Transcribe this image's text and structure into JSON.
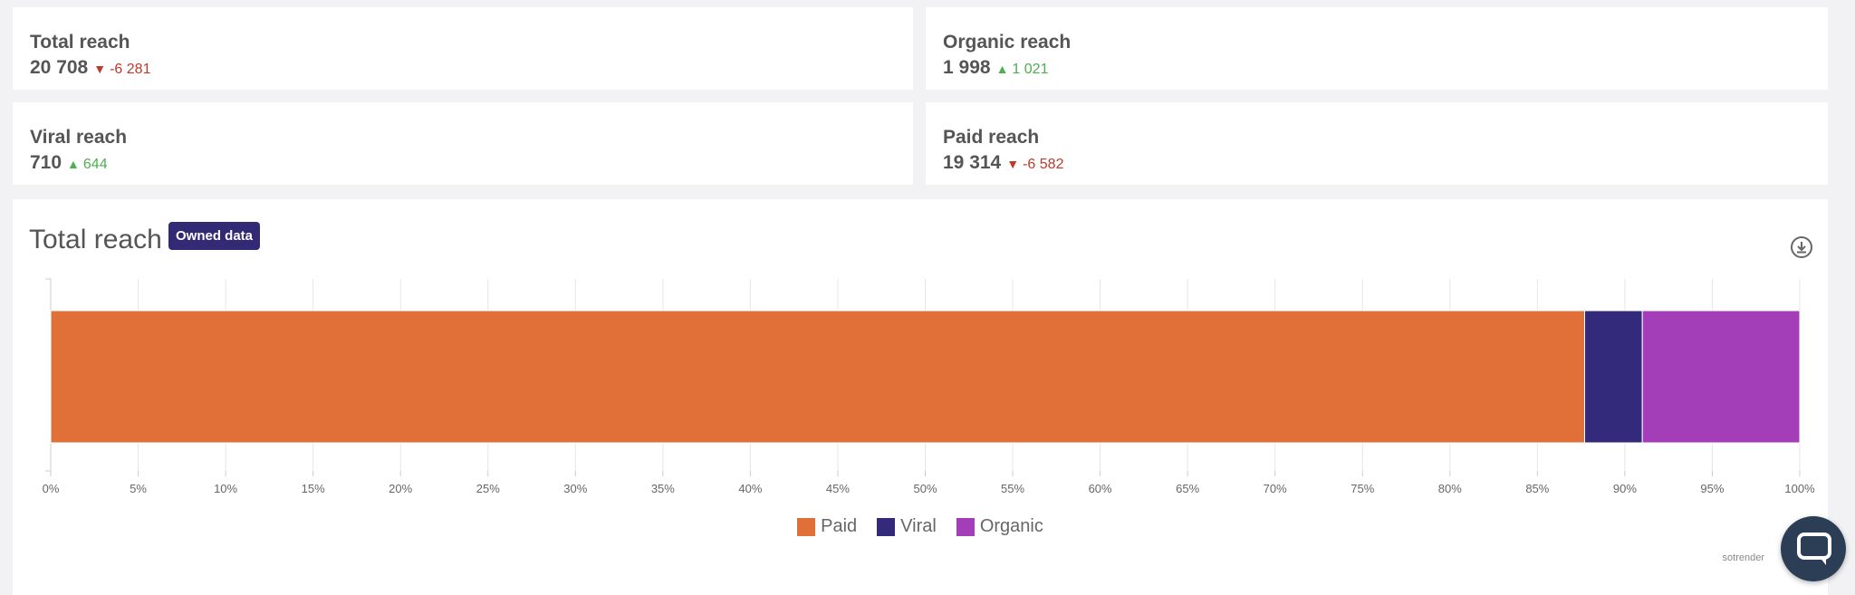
{
  "kpis": [
    {
      "title": "Total reach",
      "value": "20 708",
      "delta": "-6 281",
      "direction": "down"
    },
    {
      "title": "Organic reach",
      "value": "1 998",
      "delta": "1 021",
      "direction": "up"
    },
    {
      "title": "Viral reach",
      "value": "710",
      "delta": "644",
      "direction": "up"
    },
    {
      "title": "Paid reach",
      "value": "19 314",
      "delta": "-6 582",
      "direction": "down"
    }
  ],
  "chart_section": {
    "title": "Total reach",
    "badge": "Owned data",
    "download_icon": "download-icon",
    "watermark": "sotrender"
  },
  "chart_data": {
    "type": "bar",
    "orientation": "horizontal",
    "stacked": true,
    "percent": true,
    "categories": [
      "Total reach"
    ],
    "series": [
      {
        "name": "Paid",
        "values": [
          87.7
        ],
        "color": "#e07038"
      },
      {
        "name": "Viral",
        "values": [
          3.3
        ],
        "color": "#332a7c"
      },
      {
        "name": "Organic",
        "values": [
          9.0
        ],
        "color": "#a43db8"
      }
    ],
    "xlim": [
      0,
      100
    ],
    "xticks": [
      "0%",
      "5%",
      "10%",
      "15%",
      "20%",
      "25%",
      "30%",
      "35%",
      "40%",
      "45%",
      "50%",
      "55%",
      "60%",
      "65%",
      "70%",
      "75%",
      "80%",
      "85%",
      "90%",
      "95%",
      "100%"
    ],
    "grid": true,
    "legend": "bottom"
  },
  "chat": {
    "icon": "chat-bubble-icon"
  }
}
